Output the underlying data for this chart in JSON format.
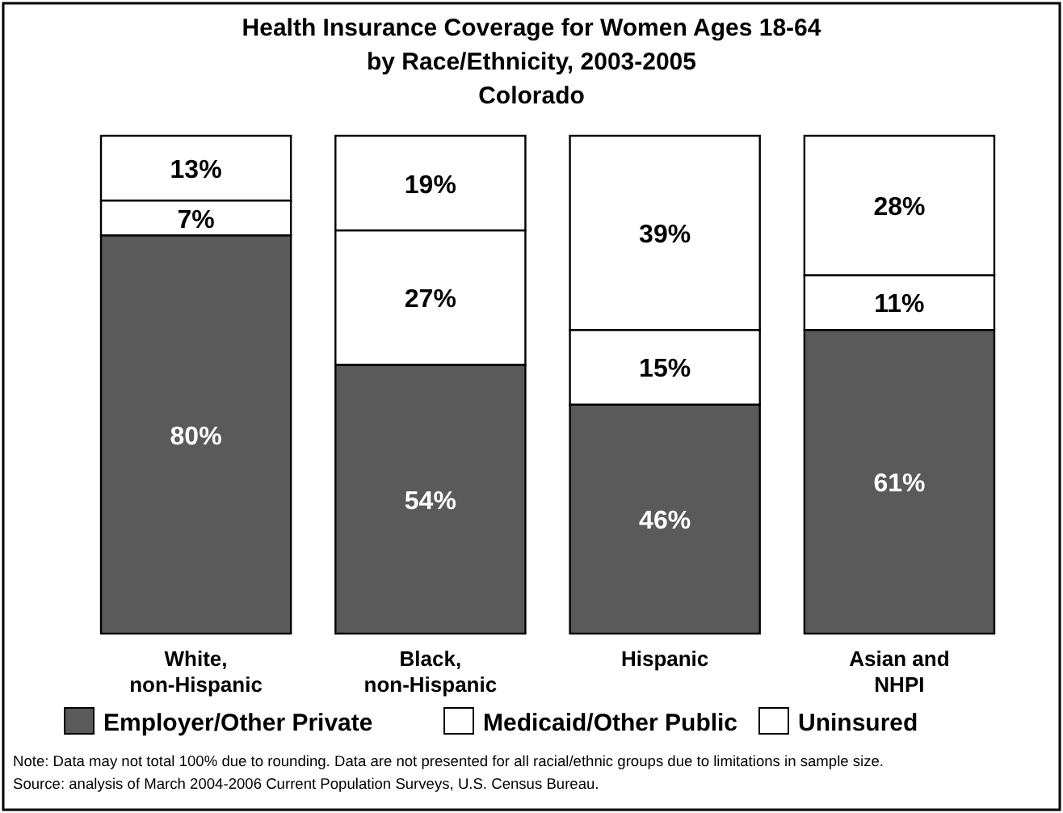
{
  "chart_data": {
    "type": "bar",
    "stacked": true,
    "legend": "bottom",
    "tick_labels": "x",
    "title": "Health Insurance Coverage for Women Ages 18-64\nby Race/Ethnicity, 2003-2005\nColorado",
    "categories": [
      "White,\nnon-Hispanic",
      "Black,\nnon-Hispanic",
      "Hispanic",
      "Asian and\nNHPI"
    ],
    "series": [
      {
        "name": "Employer/Other Private",
        "color": "#5a5a5a",
        "values": [
          80,
          54,
          46,
          61
        ],
        "value_labels": [
          "80%",
          "54%",
          "46%",
          "61%"
        ]
      },
      {
        "name": "Medicaid/Other Public",
        "color": "#ffffff",
        "values": [
          7,
          27,
          15,
          11
        ],
        "value_labels": [
          "7%",
          "27%",
          "15%",
          "11%"
        ]
      },
      {
        "name": "Uninsured",
        "color": "#ffffff",
        "values": [
          13,
          19,
          39,
          28
        ],
        "value_labels": [
          "13%",
          "19%",
          "39%",
          "28%"
        ]
      }
    ],
    "annotations": [
      "Note: Data may not total 100% due to rounding. Data are not presented for all racial/ethnic groups due to limitations in sample size.",
      "Source: analysis of March 2004-2006 Current Population Surveys, U.S. Census Bureau."
    ]
  }
}
